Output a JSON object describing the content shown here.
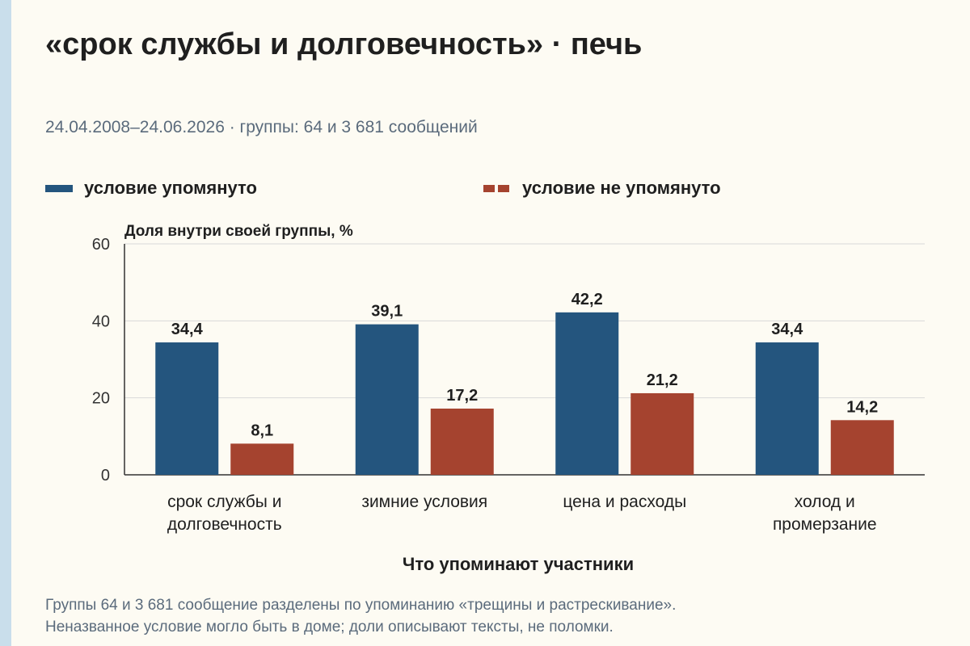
{
  "title": "«срок службы и долговечность» · печь",
  "subtitle": "24.04.2008–24.06.2026 · группы: 64 и 3 681 сообщений",
  "colors": {
    "mentioned": "#24557e",
    "not_mentioned": "#a5432f",
    "grid": "#d9d9d9",
    "axis": "#333333"
  },
  "chart_data": {
    "type": "bar",
    "categories": [
      [
        "срок службы и",
        "долговечность"
      ],
      [
        "зимние условия"
      ],
      [
        "цена и расходы"
      ],
      [
        "холод и",
        "промерзание"
      ]
    ],
    "series": [
      {
        "name": "условие упомянуто",
        "values": [
          34.4,
          39.1,
          42.2,
          34.4
        ],
        "labels": [
          "34,4",
          "39,1",
          "42,2",
          "34,4"
        ]
      },
      {
        "name": "условие не упомянуто",
        "values": [
          8.1,
          17.2,
          21.2,
          14.2
        ],
        "labels": [
          "8,1",
          "17,2",
          "21,2",
          "14,2"
        ]
      }
    ],
    "ylabel": "Доля внутри своей группы, %",
    "xlabel": "Что упоминают участники",
    "ylim": [
      0,
      60
    ],
    "yticks": [
      0,
      20,
      40,
      60
    ],
    "grid": true,
    "legend_position": "top"
  },
  "footnote": [
    "Группы 64 и 3 681 сообщение разделены по упоминанию «трещины и растрескивание».",
    "Неназванное условие могло быть в доме; доли описывают тексты, не поломки."
  ]
}
